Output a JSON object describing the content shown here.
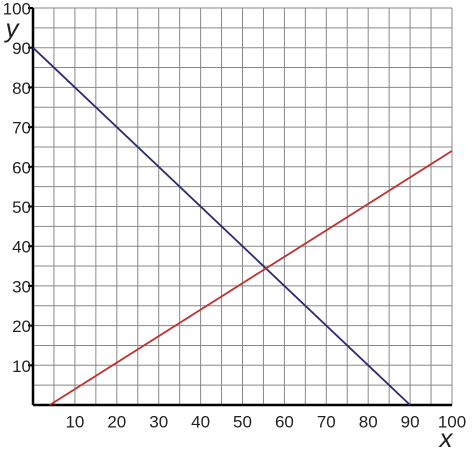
{
  "chart_data": {
    "type": "line",
    "x_label": "x",
    "y_label": "y",
    "xlim": [
      0,
      100
    ],
    "ylim": [
      0,
      100
    ],
    "xticks": [
      10,
      20,
      30,
      40,
      50,
      60,
      70,
      80,
      90,
      100
    ],
    "yticks": [
      10,
      20,
      30,
      40,
      50,
      60,
      70,
      80,
      90,
      100
    ],
    "grid": true,
    "series": [
      {
        "color": "#2b2b73",
        "x": [
          0,
          90
        ],
        "values": [
          90,
          0
        ]
      },
      {
        "color": "#c03030",
        "x": [
          4,
          100
        ],
        "values": [
          0,
          64
        ]
      }
    ]
  }
}
